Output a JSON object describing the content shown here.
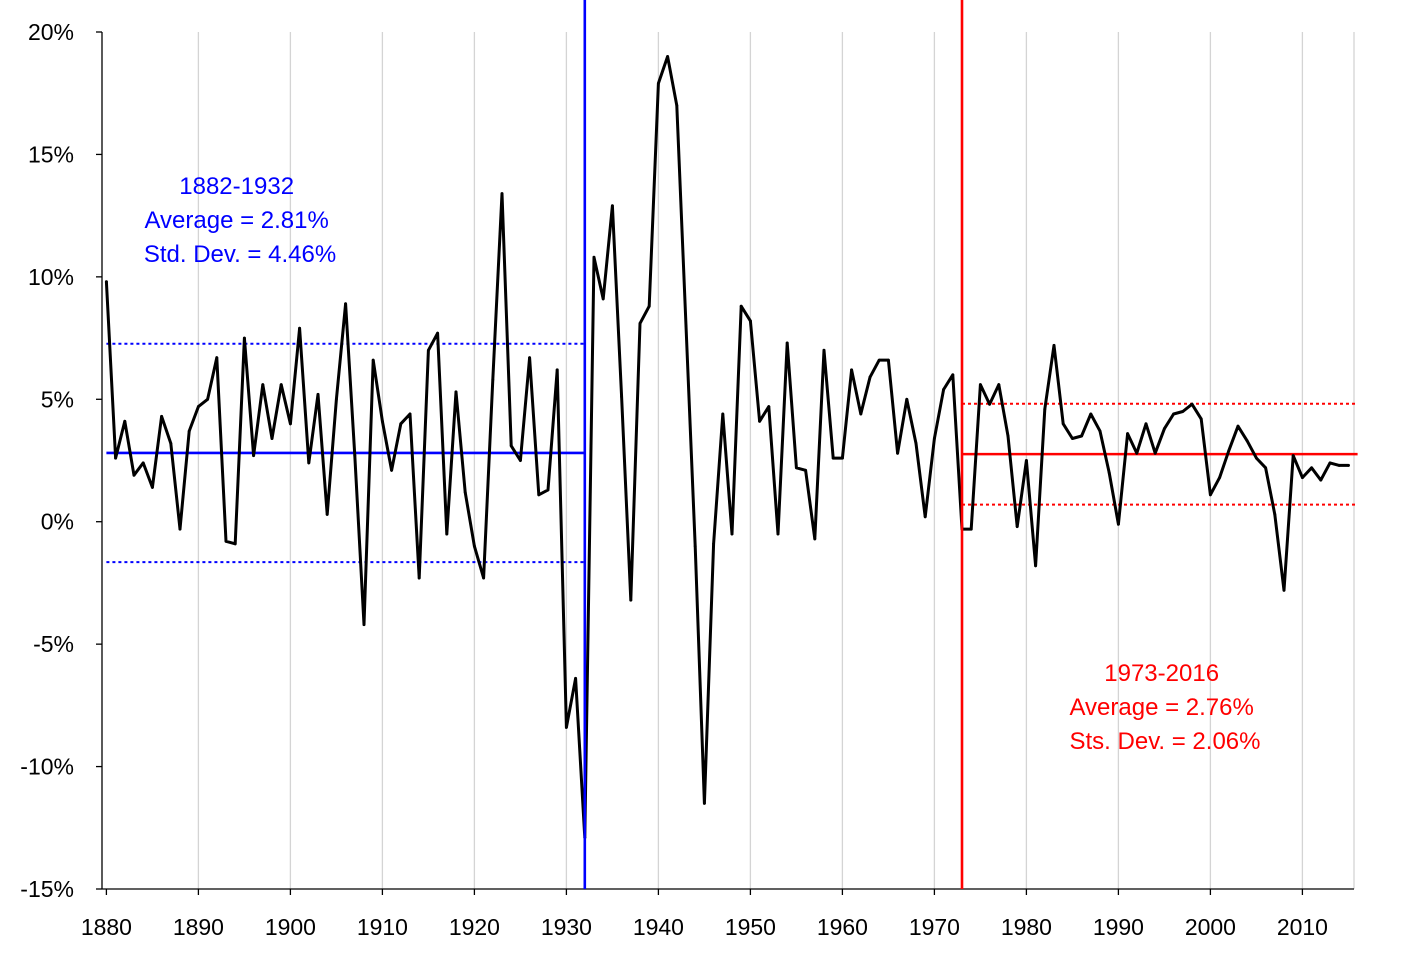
{
  "chart_data": {
    "type": "line",
    "title": "",
    "xlabel": "",
    "ylabel": "",
    "xlim": [
      1880,
      2016
    ],
    "ylim": [
      -15,
      20
    ],
    "x_ticks": [
      1880,
      1890,
      1900,
      1910,
      1920,
      1930,
      1940,
      1950,
      1960,
      1970,
      1980,
      1990,
      2000,
      2010
    ],
    "x_tick_labels": [
      "1880",
      "1890",
      "1900",
      "1910",
      "1920",
      "1930",
      "1940",
      "1950",
      "1960",
      "1970",
      "1980",
      "1990",
      "2000",
      "2010"
    ],
    "y_ticks": [
      20,
      15,
      10,
      5,
      0,
      -5,
      -10,
      -15
    ],
    "y_tick_labels": [
      "20%",
      "15%",
      "10%",
      "5%",
      "0%",
      "-5%",
      "-10%",
      "-15%"
    ],
    "grid": "vertical",
    "legend": "none",
    "series": [
      {
        "color": "#000000",
        "x": [
          1880,
          1881,
          1882,
          1883,
          1884,
          1885,
          1886,
          1887,
          1888,
          1889,
          1890,
          1891,
          1892,
          1893,
          1894,
          1895,
          1896,
          1897,
          1898,
          1899,
          1900,
          1901,
          1902,
          1903,
          1904,
          1905,
          1906,
          1907,
          1908,
          1909,
          1910,
          1911,
          1912,
          1913,
          1914,
          1915,
          1916,
          1917,
          1918,
          1919,
          1920,
          1921,
          1922,
          1923,
          1924,
          1925,
          1926,
          1927,
          1928,
          1929,
          1930,
          1931,
          1932,
          1933,
          1934,
          1935,
          1936,
          1937,
          1938,
          1939,
          1940,
          1941,
          1942,
          1943,
          1944,
          1945,
          1946,
          1947,
          1948,
          1949,
          1950,
          1951,
          1952,
          1953,
          1954,
          1955,
          1956,
          1957,
          1958,
          1959,
          1960,
          1961,
          1962,
          1963,
          1964,
          1965,
          1966,
          1967,
          1968,
          1969,
          1970,
          1971,
          1972,
          1973,
          1974,
          1975,
          1976,
          1977,
          1978,
          1979,
          1980,
          1981,
          1982,
          1983,
          1984,
          1985,
          1986,
          1987,
          1988,
          1989,
          1990,
          1991,
          1992,
          1993,
          1994,
          1995,
          1996,
          1997,
          1998,
          1999,
          2000,
          2001,
          2002,
          2003,
          2004,
          2005,
          2006,
          2007,
          2008,
          2009,
          2010,
          2011,
          2012,
          2013,
          2014,
          2015
        ],
        "values": [
          9.8,
          2.6,
          4.1,
          1.9,
          2.4,
          1.4,
          4.3,
          3.2,
          -0.3,
          3.7,
          4.7,
          5.0,
          6.7,
          -0.8,
          -0.9,
          7.5,
          2.7,
          5.6,
          3.4,
          5.6,
          4.0,
          7.9,
          2.4,
          5.2,
          0.3,
          5.0,
          8.9,
          2.7,
          -4.2,
          6.6,
          4.1,
          2.1,
          4.0,
          4.4,
          -2.3,
          7.0,
          7.7,
          -0.5,
          5.3,
          1.2,
          -1.0,
          -2.3,
          5.8,
          13.4,
          3.1,
          2.5,
          6.7,
          1.1,
          1.3,
          6.2,
          -8.4,
          -6.4,
          -12.9,
          10.8,
          9.1,
          12.9,
          5.1,
          -3.2,
          8.1,
          8.8,
          17.9,
          19.0,
          17.0,
          8.0,
          -1.0,
          -11.5,
          -0.9,
          4.4,
          -0.5,
          8.8,
          8.2,
          4.1,
          4.7,
          -0.5,
          7.3,
          2.2,
          2.1,
          -0.7,
          7.0,
          2.6,
          2.6,
          6.2,
          4.4,
          5.9,
          6.6,
          6.6,
          2.8,
          5.0,
          3.2,
          0.2,
          3.4,
          5.4,
          6.0,
          -0.3,
          -0.3,
          5.6,
          4.8,
          5.6,
          3.5,
          -0.2,
          2.5,
          -1.8,
          4.6,
          7.2,
          4.0,
          3.4,
          3.5,
          4.4,
          3.7,
          2.0,
          -0.1,
          3.6,
          2.8,
          4.0,
          2.8,
          3.8,
          4.4,
          4.5,
          4.8,
          4.2,
          1.1,
          1.8,
          2.9,
          3.9,
          3.3,
          2.6,
          2.2,
          0.3,
          -2.8,
          2.7,
          1.8,
          2.2,
          1.7,
          2.4,
          2.3,
          2.3
        ]
      }
    ],
    "reference_lines": [
      {
        "id": "blue-average",
        "from_year": 1880,
        "to_year": 1932,
        "value": 2.81,
        "color": "#0000ff",
        "style": "solid"
      },
      {
        "id": "blue-upper",
        "from_year": 1880,
        "to_year": 1932,
        "value": 7.27,
        "color": "#0000ff",
        "style": "dotted"
      },
      {
        "id": "blue-lower",
        "from_year": 1880,
        "to_year": 1932,
        "value": -1.65,
        "color": "#0000ff",
        "style": "dotted"
      },
      {
        "id": "red-average",
        "from_year": 1973,
        "to_year": 2016,
        "value": 2.76,
        "color": "#ff0000",
        "style": "solid"
      },
      {
        "id": "red-upper",
        "from_year": 1973,
        "to_year": 2016,
        "value": 4.82,
        "color": "#ff0000",
        "style": "dotted"
      },
      {
        "id": "red-lower",
        "from_year": 1973,
        "to_year": 2016,
        "value": 0.7,
        "color": "#ff0000",
        "style": "dotted"
      }
    ],
    "vertical_markers": [
      {
        "id": "blue-marker",
        "year": 1932,
        "color": "#0000ff"
      },
      {
        "id": "red-marker",
        "year": 1973,
        "color": "#ff0000"
      }
    ],
    "annotations": [
      {
        "id": "blue",
        "color": "#0000ff",
        "lines": [
          "1882-1932",
          "Average = 2.81%",
          "Std. Dev. = 4.46%"
        ]
      },
      {
        "id": "red",
        "color": "#ff0000",
        "lines": [
          "1973-2016",
          "Average = 2.76%",
          "Sts. Dev. = 2.06%"
        ]
      }
    ]
  }
}
